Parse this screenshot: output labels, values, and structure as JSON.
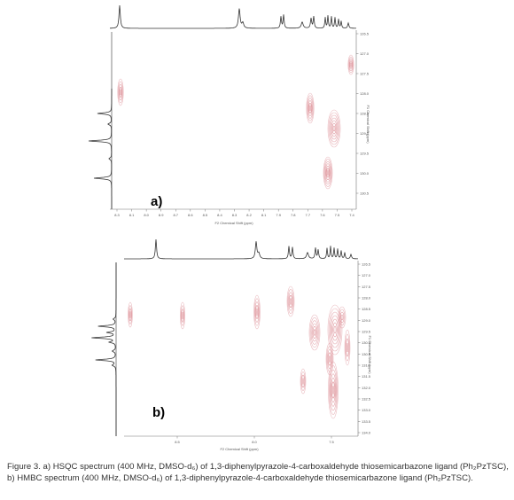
{
  "figure": {
    "caption": "Figure 3. a) HSQC spectrum (400 MHz, DMSO-d₆) of 1,3-diphenylpyrazole-4-carboxaldehyde thiosemicarbazone ligand (Ph₂PzTSC), b) HMBC spectrum (400 MHz, DMSO-d₆) of 1,3-diphenylpyrazole-4-carboxaldehyde thiosemicarbazone ligand (Ph₂PzTSC)."
  },
  "panel_a": {
    "label": "a)",
    "x_axis_label": "F2 Chemical Shift (ppm)",
    "y_axis_label": "F1 Chemical Shift (ppm)",
    "x_ticks": [
      "8.3",
      "8.1",
      "8.0",
      "8.9",
      "8.7",
      "8.6",
      "8.5",
      "8.4",
      "8.3",
      "8.2",
      "8.1",
      "7.9",
      "7.8",
      "7.7",
      "7.6",
      "7.5",
      "7.4"
    ],
    "y_ticks": [
      "126.5",
      "127.0",
      "127.5",
      "128.0",
      "128.5",
      "129.0",
      "129.5",
      "130.0",
      "130.5"
    ]
  },
  "panel_b": {
    "label": "b)",
    "x_axis_label": "F2 Chemical Shift (ppm)",
    "y_axis_label": "F1 Chemical Shift (ppm)",
    "x_ticks": [
      "8.5",
      "8.0",
      "7.5"
    ],
    "y_ticks": [
      "126.5",
      "127.0",
      "127.5",
      "128.0",
      "128.5",
      "129.0",
      "129.5",
      "130.0",
      "130.5",
      "131.0",
      "131.5",
      "132.0",
      "132.5",
      "133.0",
      "133.5",
      "134.0"
    ]
  },
  "colors": {
    "contour": "#d9828a",
    "trace": "#333333",
    "axis": "#777777"
  }
}
